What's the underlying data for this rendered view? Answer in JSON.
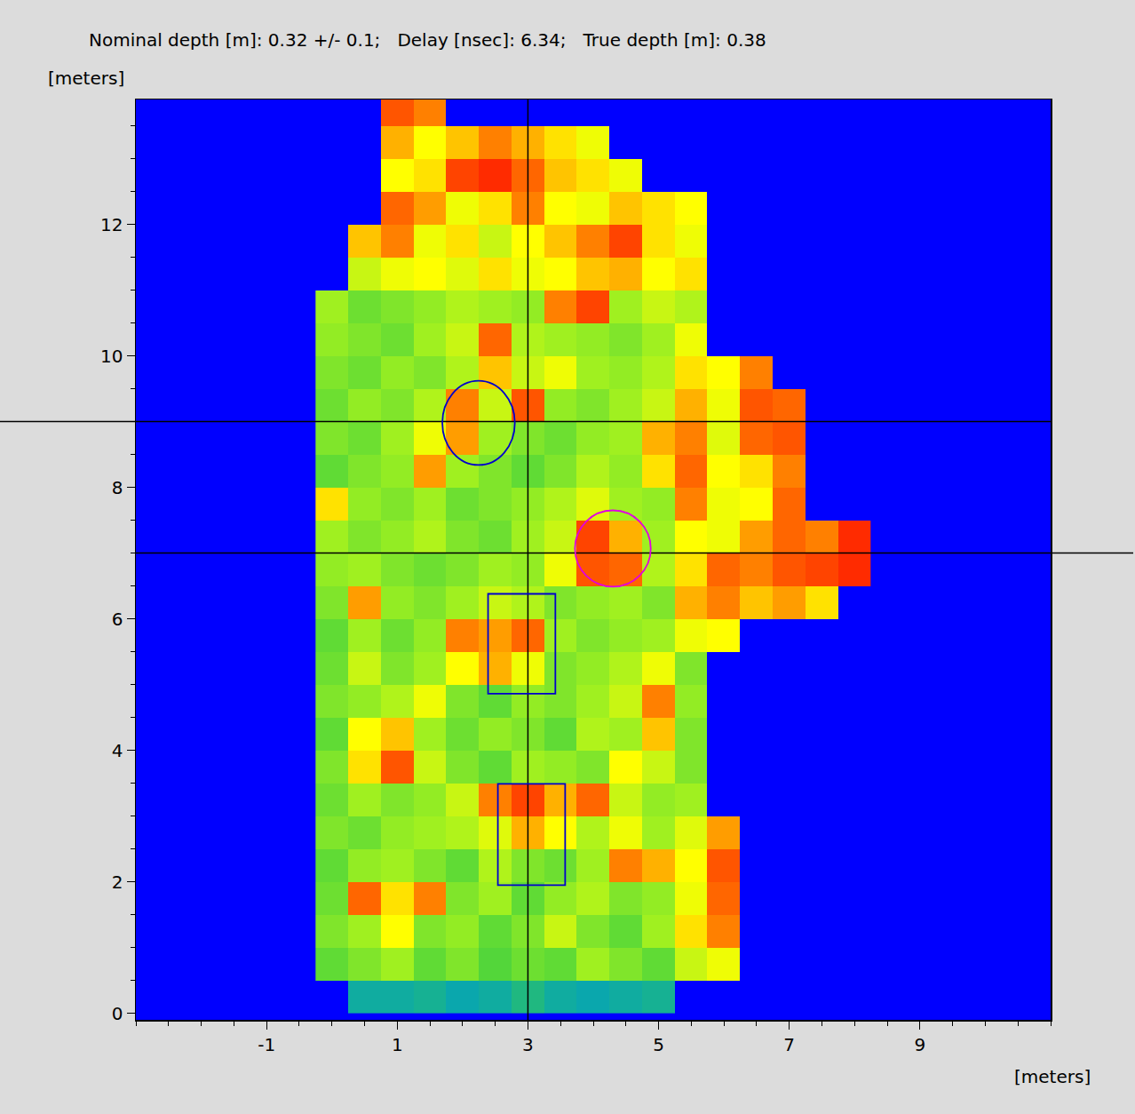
{
  "chart_data": {
    "type": "heatmap",
    "title": "Nominal depth [m]: 0.32 +/- 0.1;   Delay [nsec]: 6.34;   True depth [m]: 0.38",
    "x_label": "[meters]",
    "y_label": "[meters]",
    "xlim": [
      -3,
      11
    ],
    "ylim": [
      -0.1,
      13.9
    ],
    "xticks": [
      -1,
      1,
      3,
      5,
      7,
      9
    ],
    "yticks": [
      0,
      2,
      4,
      6,
      8,
      10,
      12
    ],
    "zlim": [
      0,
      100
    ],
    "x": [
      0,
      0.5,
      1,
      1.5,
      2,
      2.5,
      3,
      3.5,
      4,
      4.5,
      5,
      5.5,
      6,
      6.5,
      7,
      7.5,
      8
    ],
    "y": [
      0.25,
      0.75,
      1.25,
      1.75,
      2.25,
      2.75,
      3.25,
      3.75,
      4.25,
      4.75,
      5.25,
      5.75,
      6.25,
      6.75,
      7.25,
      7.75,
      8.25,
      8.75,
      9.25,
      9.75,
      10.25,
      10.75,
      11.25,
      11.75,
      12.25,
      12.75,
      13.25,
      13.75
    ],
    "z": [
      [
        null,
        30,
        30,
        32,
        28,
        30,
        35,
        30,
        28,
        30,
        32,
        null,
        null,
        null,
        null,
        null,
        null
      ],
      [
        50,
        55,
        60,
        50,
        55,
        48,
        52,
        50,
        60,
        55,
        50,
        65,
        70,
        null,
        null,
        null,
        null
      ],
      [
        55,
        60,
        72,
        55,
        58,
        50,
        55,
        65,
        55,
        50,
        60,
        75,
        85,
        null,
        null,
        null,
        null
      ],
      [
        52,
        88,
        75,
        85,
        55,
        60,
        50,
        58,
        62,
        55,
        58,
        70,
        88,
        null,
        null,
        null,
        null
      ],
      [
        50,
        58,
        60,
        55,
        50,
        62,
        55,
        52,
        60,
        85,
        80,
        72,
        90,
        null,
        null,
        null,
        null
      ],
      [
        55,
        52,
        58,
        60,
        62,
        68,
        80,
        72,
        62,
        70,
        60,
        68,
        82,
        null,
        null,
        null,
        null
      ],
      [
        52,
        60,
        55,
        58,
        65,
        85,
        92,
        80,
        88,
        65,
        58,
        60,
        null,
        null,
        null,
        null,
        null
      ],
      [
        55,
        75,
        90,
        65,
        55,
        50,
        60,
        58,
        55,
        72,
        65,
        55,
        null,
        null,
        null,
        null,
        null
      ],
      [
        50,
        72,
        78,
        60,
        52,
        58,
        55,
        50,
        62,
        60,
        78,
        55,
        null,
        null,
        null,
        null,
        null
      ],
      [
        55,
        58,
        62,
        70,
        55,
        50,
        58,
        55,
        60,
        65,
        85,
        58,
        null,
        null,
        null,
        null,
        null
      ],
      [
        52,
        65,
        55,
        60,
        72,
        80,
        70,
        55,
        58,
        62,
        70,
        55,
        null,
        null,
        null,
        null,
        null
      ],
      [
        50,
        60,
        52,
        58,
        85,
        82,
        88,
        60,
        55,
        58,
        60,
        70,
        72,
        null,
        null,
        null,
        null
      ],
      [
        55,
        82,
        58,
        55,
        60,
        65,
        62,
        55,
        58,
        60,
        55,
        80,
        85,
        78,
        82,
        75,
        null
      ],
      [
        58,
        60,
        55,
        52,
        55,
        60,
        58,
        70,
        90,
        88,
        62,
        75,
        88,
        85,
        90,
        92,
        95
      ],
      [
        60,
        55,
        58,
        62,
        55,
        52,
        60,
        65,
        92,
        80,
        60,
        72,
        70,
        82,
        88,
        85,
        95
      ],
      [
        75,
        58,
        55,
        60,
        52,
        55,
        58,
        62,
        68,
        60,
        58,
        85,
        70,
        72,
        88,
        null,
        null
      ],
      [
        50,
        55,
        58,
        82,
        60,
        55,
        50,
        55,
        62,
        58,
        75,
        88,
        72,
        75,
        85,
        null,
        null
      ],
      [
        55,
        52,
        60,
        70,
        82,
        60,
        55,
        52,
        58,
        60,
        80,
        85,
        68,
        88,
        90,
        null,
        null
      ],
      [
        52,
        58,
        55,
        62,
        85,
        65,
        90,
        58,
        55,
        60,
        65,
        80,
        70,
        90,
        88,
        null,
        null
      ],
      [
        55,
        52,
        58,
        55,
        62,
        78,
        65,
        70,
        60,
        58,
        62,
        75,
        72,
        85,
        null,
        null,
        null
      ],
      [
        58,
        55,
        52,
        60,
        65,
        88,
        62,
        60,
        58,
        55,
        60,
        70,
        null,
        null,
        null,
        null,
        null
      ],
      [
        60,
        52,
        55,
        58,
        62,
        60,
        58,
        85,
        92,
        60,
        65,
        62,
        null,
        null,
        null,
        null,
        null
      ],
      [
        null,
        65,
        70,
        72,
        68,
        75,
        70,
        72,
        78,
        80,
        72,
        75,
        null,
        null,
        null,
        null,
        null
      ],
      [
        null,
        78,
        85,
        70,
        75,
        65,
        72,
        78,
        85,
        92,
        75,
        70,
        null,
        null,
        null,
        null,
        null
      ],
      [
        null,
        null,
        88,
        82,
        70,
        75,
        85,
        72,
        70,
        78,
        75,
        72,
        null,
        null,
        null,
        null,
        null
      ],
      [
        null,
        null,
        72,
        75,
        92,
        95,
        88,
        78,
        75,
        70,
        null,
        null,
        null,
        null,
        null,
        null,
        null
      ],
      [
        null,
        null,
        80,
        72,
        78,
        85,
        80,
        75,
        70,
        null,
        null,
        null,
        null,
        null,
        null,
        null,
        null
      ],
      [
        null,
        null,
        90,
        85,
        null,
        null,
        null,
        null,
        null,
        null,
        null,
        null,
        null,
        null,
        null,
        null,
        null
      ]
    ],
    "crosshairs": {
      "x": [
        3
      ],
      "y": [
        9,
        7
      ]
    },
    "regions": [
      {
        "shape": "ellipse",
        "color": "#0000cc",
        "x": [
          1.69,
          2.8
        ],
        "y": [
          8.34,
          9.62
        ]
      },
      {
        "shape": "ellipse",
        "color": "#e000e0",
        "x": [
          3.72,
          4.88
        ],
        "y": [
          6.49,
          7.65
        ]
      },
      {
        "shape": "rectangle",
        "color": "#0000cc",
        "x": [
          2.39,
          3.42
        ],
        "y": [
          4.86,
          6.38
        ]
      },
      {
        "shape": "rectangle",
        "color": "#0000cc",
        "x": [
          2.54,
          3.57
        ],
        "y": [
          1.95,
          3.49
        ]
      }
    ]
  }
}
